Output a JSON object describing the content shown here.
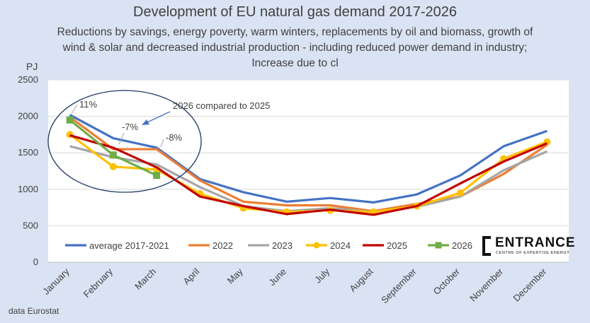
{
  "chart_data": {
    "type": "line",
    "title": "Development of EU natural gas demand 2017-2026",
    "subtitle": "Reductions by savings, energy poverty, warm winters, replacements by oil and biomass, growth of wind & solar and decreased industrial production - including reduced power demand in industry; Increase due to cl",
    "ylabel": "PJ",
    "xlabel": "",
    "ylim": [
      0,
      2500
    ],
    "yticks": [
      0,
      500,
      1000,
      1500,
      2000,
      2500
    ],
    "grid": true,
    "legend_position": "bottom",
    "categories": [
      "January",
      "February",
      "March",
      "April",
      "May",
      "June",
      "July",
      "August",
      "September",
      "October",
      "November",
      "December"
    ],
    "series": [
      {
        "name": "average 2017-2021",
        "color": "#4472c4",
        "marker": "none",
        "values": [
          2020,
          1700,
          1570,
          1140,
          960,
          830,
          880,
          820,
          930,
          1190,
          1590,
          1800
        ]
      },
      {
        "name": "2022",
        "color": "#ed7d31",
        "marker": "none",
        "values": [
          1990,
          1550,
          1550,
          1120,
          830,
          780,
          780,
          700,
          800,
          900,
          1210,
          1610
        ]
      },
      {
        "name": "2023",
        "color": "#a5a5a5",
        "marker": "none",
        "values": [
          1590,
          1440,
          1340,
          1030,
          770,
          700,
          740,
          690,
          760,
          900,
          1260,
          1520
        ]
      },
      {
        "name": "2024",
        "color": "#ffc000",
        "marker": "circle",
        "values": [
          1750,
          1310,
          1270,
          940,
          740,
          690,
          710,
          690,
          770,
          950,
          1420,
          1650
        ]
      },
      {
        "name": "2025",
        "color": "#c00000",
        "marker": "none",
        "values": [
          1740,
          1570,
          1300,
          900,
          770,
          660,
          720,
          650,
          770,
          1080,
          1380,
          1630
        ]
      },
      {
        "name": "2026",
        "color": "#70ad47",
        "marker": "square",
        "values": [
          1950,
          1470,
          1190,
          null,
          null,
          null,
          null,
          null,
          null,
          null,
          null,
          null
        ]
      }
    ],
    "annotations": [
      {
        "text": "11%",
        "month": "January"
      },
      {
        "text": "-7%",
        "month": "February"
      },
      {
        "text": "-8%",
        "month": "March"
      },
      {
        "text": "2026 compared to 2025"
      }
    ]
  },
  "source_note": "data Eurostat",
  "logo": {
    "name": "ENTRANCE",
    "tagline": "CENTRE OF EXPERTISE ENERGY"
  }
}
